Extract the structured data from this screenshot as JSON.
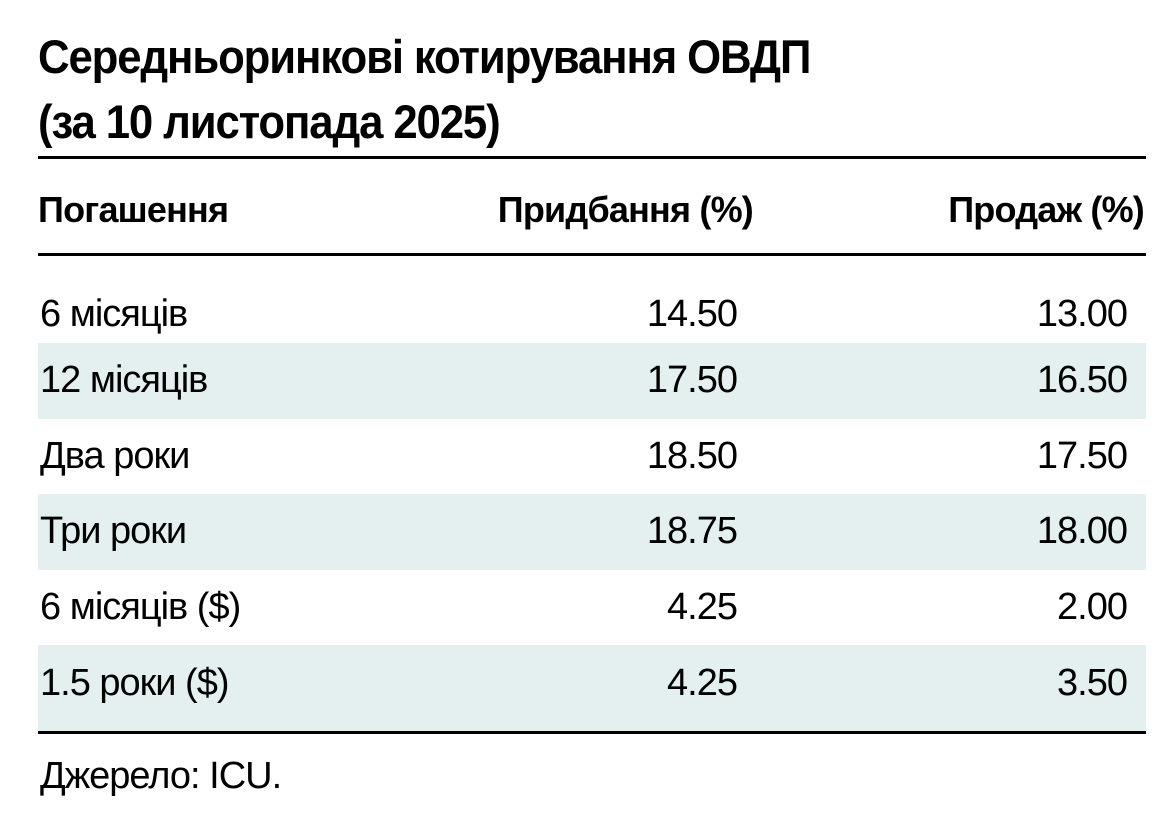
{
  "title": [
    "Середньоринкові котирування ОВДП",
    "(за 10 листопада 2025)"
  ],
  "table": {
    "header": [
      "Погашення",
      "Придбання (%)",
      "Продаж (%)"
    ],
    "rows": [
      [
        "6 місяців",
        "14.50",
        "13.00"
      ],
      [
        "12 місяців",
        "17.50",
        "16.50"
      ],
      [
        "Два роки",
        "18.50",
        "17.50"
      ],
      [
        "Три роки",
        "18.75",
        "18.00"
      ],
      [
        "6 місяців ($)",
        "4.25",
        "2.00"
      ],
      [
        "1.5 роки ($)",
        "4.25",
        "3.50"
      ]
    ]
  },
  "source": "Джерело: ICU."
}
